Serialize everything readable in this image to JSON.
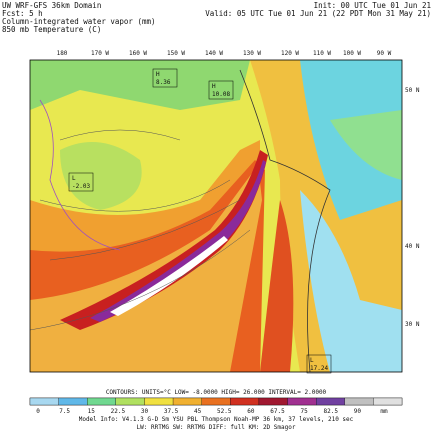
{
  "header": {
    "title": "UW WRF-GFS 36km Domain",
    "forecast": "Fcst:  5 h",
    "field1": "Column-integrated water vapor (mm)",
    "field2": "850 mb Temperature (C)",
    "init": "Init: 00 UTC Tue 01 Jun 21",
    "valid": "Valid: 05 UTC Tue 01 Jun 21 (22 PDT Mon 31 May 21)"
  },
  "map": {
    "longitudes": [
      "180",
      "170 W",
      "160 W",
      "150 W",
      "140 W",
      "130 W",
      "120 W",
      "110 W",
      "100 W",
      "90 W"
    ],
    "latitudes": [
      "50 N",
      "40 N",
      "30 N"
    ],
    "labels": [
      "H",
      "8.36",
      "H",
      "10.08",
      "L",
      "-2.03",
      "L",
      "17.24"
    ]
  },
  "colorbar": {
    "labels": [
      "0",
      "7.5",
      "15",
      "22.5",
      "30",
      "37.5",
      "45",
      "52.5",
      "60",
      "67.5",
      "75",
      "82.5",
      "90",
      "mm"
    ]
  },
  "footer": {
    "contours": "CONTOURS:  UNITS=°C   LOW= -8.0000    HIGH= 26.000    INTERVAL= 2.0000",
    "model": "Model Info: V4.1.3   G-D Sm  YSU PBL  Thompson   Noah-MP   36 km,  37 levels,  210 sec",
    "physics": "LW: RRTMG  SW: RRTMG   DIFF: full   KM: 2D Smagor"
  }
}
